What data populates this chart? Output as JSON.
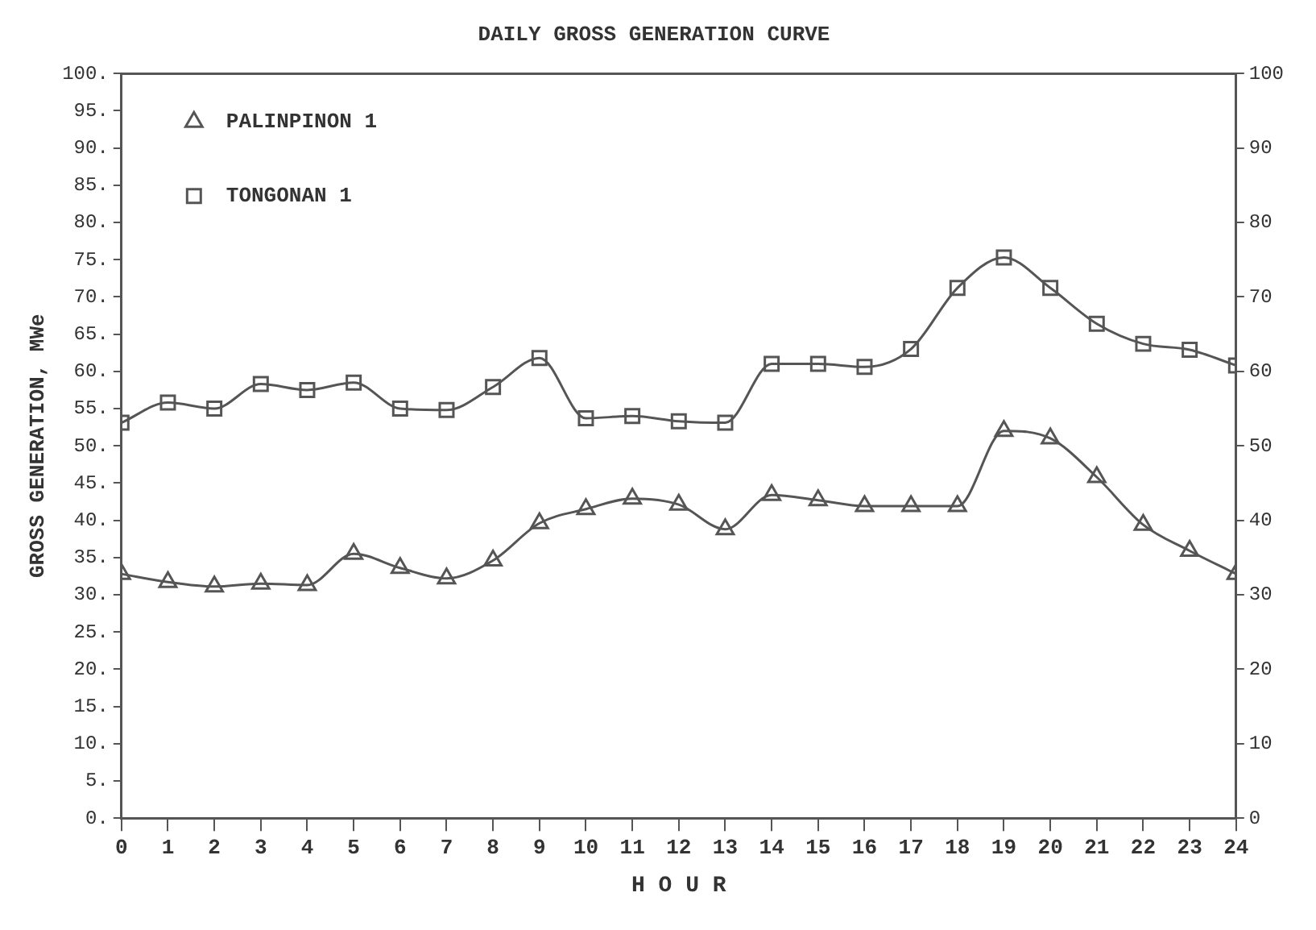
{
  "chart_data": {
    "type": "line",
    "title": "DAILY GROSS GENERATION CURVE",
    "xlabel": "H O U R",
    "ylabel": "GROSS GENERATION, MWe",
    "x": [
      0,
      1,
      2,
      3,
      4,
      5,
      6,
      7,
      8,
      9,
      10,
      11,
      12,
      13,
      14,
      15,
      16,
      17,
      18,
      19,
      20,
      21,
      22,
      23,
      24
    ],
    "series": [
      {
        "name": "PALINPINON 1",
        "color": "#555555",
        "marker": "triangle",
        "values": [
          32.8,
          31.7,
          31.1,
          31.5,
          31.3,
          35.5,
          33.6,
          32.2,
          34.6,
          39.6,
          41.5,
          42.9,
          42.1,
          38.8,
          43.4,
          42.7,
          41.9,
          41.9,
          41.9,
          52,
          51,
          45.8,
          39.4,
          35.9,
          32.8
        ]
      },
      {
        "name": "TONGONAN 1",
        "color": "#555555",
        "marker": "square",
        "values": [
          53.1,
          55.8,
          55,
          58.3,
          57.5,
          58.5,
          55,
          54.8,
          57.9,
          61.8,
          53.7,
          54,
          53.3,
          53.1,
          61,
          61,
          60.6,
          63,
          71.2,
          75.3,
          71.2,
          66.4,
          63.7,
          62.9,
          60.8
        ]
      }
    ],
    "xlim": [
      0,
      24
    ],
    "xticks": [
      0,
      1,
      2,
      3,
      4,
      5,
      6,
      7,
      8,
      9,
      10,
      11,
      12,
      13,
      14,
      15,
      16,
      17,
      18,
      19,
      20,
      21,
      22,
      23,
      24
    ],
    "ylim": [
      0,
      100
    ],
    "yticks": [
      {
        "value": 0,
        "label": "0."
      },
      {
        "value": 5,
        "label": "5."
      },
      {
        "value": 10,
        "label": "10."
      },
      {
        "value": 15,
        "label": "15."
      },
      {
        "value": 20,
        "label": "20."
      },
      {
        "value": 25,
        "label": "25."
      },
      {
        "value": 30,
        "label": "30."
      },
      {
        "value": 35,
        "label": "35."
      },
      {
        "value": 40,
        "label": "40."
      },
      {
        "value": 45,
        "label": "45."
      },
      {
        "value": 50,
        "label": "50."
      },
      {
        "value": 55,
        "label": "55."
      },
      {
        "value": 60,
        "label": "60."
      },
      {
        "value": 65,
        "label": "65."
      },
      {
        "value": 70,
        "label": "70."
      },
      {
        "value": 75,
        "label": "75."
      },
      {
        "value": 80,
        "label": "80."
      },
      {
        "value": 85,
        "label": "85."
      },
      {
        "value": 90,
        "label": "90."
      },
      {
        "value": 95,
        "label": "95."
      },
      {
        "value": 100,
        "label": "100."
      }
    ],
    "y2lim": [
      0,
      100
    ],
    "y2ticks": [
      0,
      10,
      20,
      30,
      40,
      50,
      60,
      70,
      80,
      90,
      100
    ],
    "grid": false,
    "legend": "top left",
    "line_style": "solid"
  }
}
